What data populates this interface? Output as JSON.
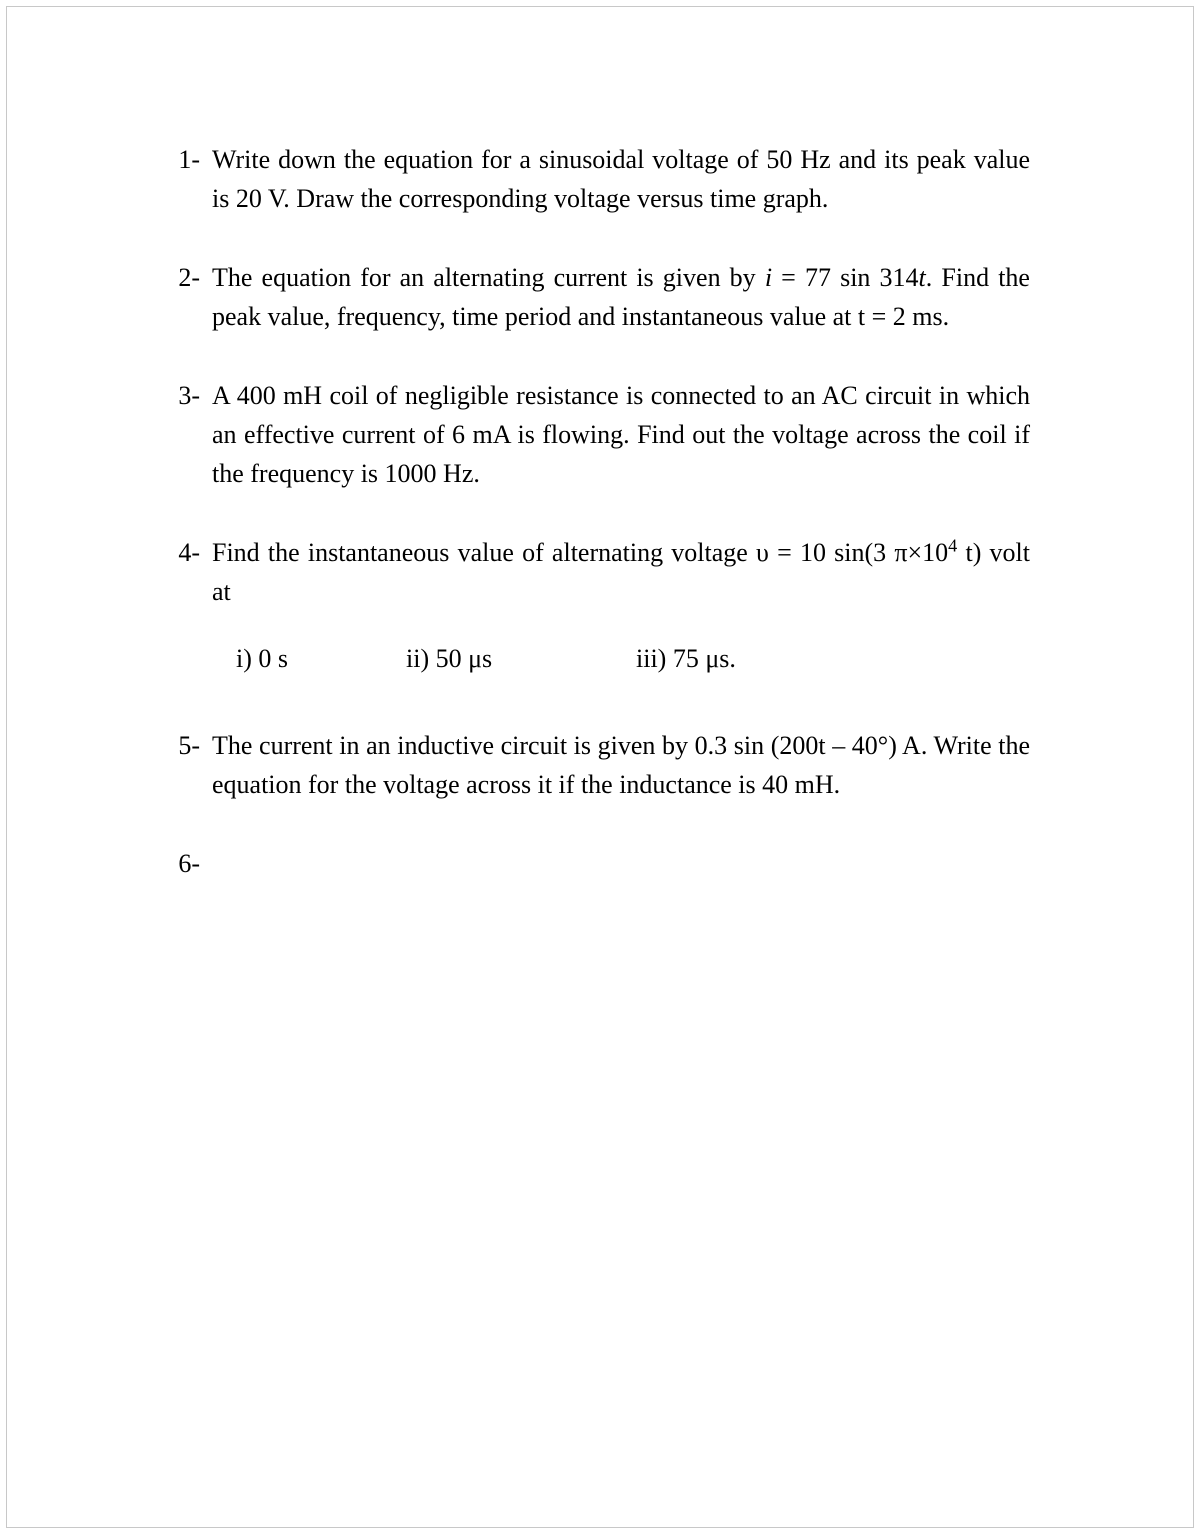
{
  "page": {
    "background_color": "#ffffff",
    "text_color": "#000000",
    "font_family": "Times New Roman",
    "base_fontsize": 26,
    "border_color": "#c8c8c8"
  },
  "questions": [
    {
      "number": "1-",
      "text": "Write down the equation for a sinusoidal voltage of 50 Hz and its peak value is 20 V. Draw the corresponding voltage versus time graph."
    },
    {
      "number": "2-",
      "text_parts": {
        "p1": "The equation for an alternating current is given by ",
        "i_var": "i",
        "p2": " = 77 sin 314",
        "t_var": "t",
        "p3": ". Find the peak value, frequency, time period and instantaneous value at t = 2 ms."
      }
    },
    {
      "number": "3-",
      "text": "A 400 mH coil of negligible resistance is connected to an AC circuit in which an effective current of 6 mA is flowing. Find out the voltage across the coil if the frequency is 1000 Hz."
    },
    {
      "number": "4-",
      "text_parts": {
        "p1": "Find the instantaneous value of alternating voltage υ = 10 sin(3 π×10",
        "sup": "4",
        "p2": " t) volt at"
      },
      "subitems": [
        "i) 0 s",
        "ii) 50 μs",
        "iii) 75 μs."
      ]
    },
    {
      "number": "5-",
      "text": "The current in an inductive circuit is given by 0.3 sin (200t – 40°) A. Write the equation for the voltage across it if the inductance is 40 mH."
    },
    {
      "number": "6-",
      "text": ""
    }
  ]
}
